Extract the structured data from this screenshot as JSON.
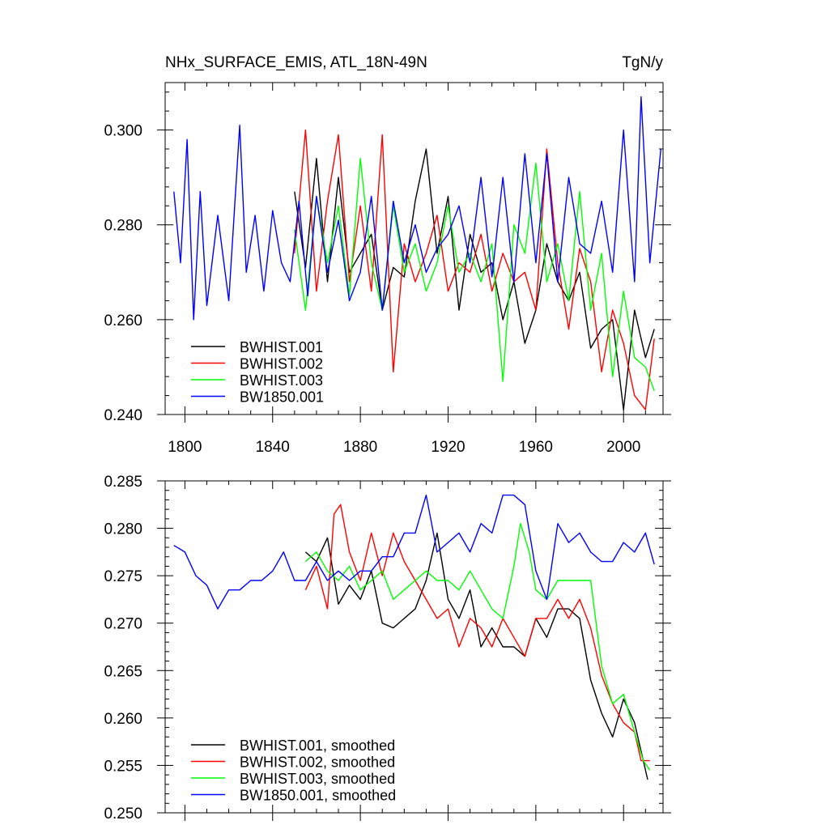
{
  "chart_data": [
    {
      "type": "line",
      "title": "NHx_SURFACE_EMIS, ATL_18N-49N",
      "units": "TgN/y",
      "xlim": [
        1791,
        2018
      ],
      "ylim": [
        0.24,
        0.31
      ],
      "x_ticks": [
        1800,
        1840,
        1880,
        1920,
        1960,
        2000
      ],
      "y_ticks": [
        0.24,
        0.26,
        0.28,
        0.3
      ],
      "y_tick_labels": [
        "0.240",
        "0.260",
        "0.280",
        "0.300"
      ],
      "legend_position": "bottom-left",
      "series": [
        {
          "name": "BWHIST.001",
          "color": "#000000",
          "x": [
            1850,
            1855,
            1860,
            1865,
            1870,
            1875,
            1880,
            1885,
            1890,
            1895,
            1900,
            1905,
            1910,
            1915,
            1920,
            1925,
            1930,
            1935,
            1940,
            1945,
            1950,
            1955,
            1960,
            1965,
            1970,
            1975,
            1980,
            1985,
            1990,
            1995,
            2000,
            2005,
            2010,
            2014
          ],
          "values": [
            0.287,
            0.271,
            0.294,
            0.268,
            0.29,
            0.27,
            0.274,
            0.278,
            0.262,
            0.271,
            0.269,
            0.285,
            0.296,
            0.274,
            0.286,
            0.262,
            0.278,
            0.27,
            0.272,
            0.26,
            0.268,
            0.255,
            0.262,
            0.276,
            0.268,
            0.264,
            0.27,
            0.254,
            0.258,
            0.26,
            0.241,
            0.262,
            0.252,
            0.258
          ]
        },
        {
          "name": "BWHIST.002",
          "color": "#ff0000",
          "x": [
            1850,
            1855,
            1860,
            1865,
            1870,
            1875,
            1880,
            1885,
            1890,
            1895,
            1900,
            1905,
            1910,
            1915,
            1920,
            1925,
            1930,
            1935,
            1940,
            1945,
            1950,
            1955,
            1960,
            1965,
            1970,
            1975,
            1980,
            1985,
            1990,
            1995,
            2000,
            2005,
            2010,
            2014
          ],
          "values": [
            0.274,
            0.3,
            0.266,
            0.285,
            0.299,
            0.268,
            0.284,
            0.266,
            0.299,
            0.249,
            0.276,
            0.268,
            0.274,
            0.282,
            0.266,
            0.272,
            0.27,
            0.278,
            0.266,
            0.274,
            0.268,
            0.27,
            0.262,
            0.296,
            0.272,
            0.258,
            0.275,
            0.268,
            0.249,
            0.262,
            0.255,
            0.244,
            0.241,
            0.256
          ]
        },
        {
          "name": "BWHIST.003",
          "color": "#00ff00",
          "x": [
            1850,
            1855,
            1860,
            1865,
            1870,
            1875,
            1880,
            1885,
            1890,
            1895,
            1900,
            1905,
            1910,
            1915,
            1920,
            1925,
            1930,
            1935,
            1940,
            1945,
            1950,
            1955,
            1960,
            1965,
            1970,
            1975,
            1980,
            1985,
            1990,
            1995,
            2000,
            2005,
            2010,
            2014
          ],
          "values": [
            0.279,
            0.262,
            0.286,
            0.272,
            0.284,
            0.265,
            0.294,
            0.272,
            0.262,
            0.284,
            0.27,
            0.276,
            0.266,
            0.272,
            0.284,
            0.27,
            0.274,
            0.268,
            0.276,
            0.247,
            0.28,
            0.274,
            0.293,
            0.268,
            0.276,
            0.264,
            0.287,
            0.262,
            0.274,
            0.248,
            0.266,
            0.252,
            0.25,
            0.245
          ]
        },
        {
          "name": "BW1850.001",
          "color": "#0000ff",
          "x": [
            1795,
            1798,
            1801,
            1804,
            1807,
            1810,
            1815,
            1820,
            1825,
            1828,
            1832,
            1836,
            1840,
            1844,
            1848,
            1852,
            1856,
            1860,
            1865,
            1870,
            1875,
            1880,
            1885,
            1890,
            1895,
            1900,
            1905,
            1910,
            1915,
            1920,
            1925,
            1930,
            1935,
            1940,
            1945,
            1950,
            1955,
            1960,
            1965,
            1970,
            1975,
            1980,
            1985,
            1990,
            1995,
            2000,
            2005,
            2008,
            2012,
            2017
          ],
          "values": [
            0.287,
            0.272,
            0.298,
            0.26,
            0.287,
            0.263,
            0.282,
            0.264,
            0.301,
            0.27,
            0.282,
            0.266,
            0.283,
            0.272,
            0.268,
            0.285,
            0.265,
            0.286,
            0.27,
            0.281,
            0.264,
            0.27,
            0.286,
            0.262,
            0.285,
            0.272,
            0.28,
            0.27,
            0.275,
            0.278,
            0.284,
            0.272,
            0.29,
            0.269,
            0.29,
            0.268,
            0.295,
            0.272,
            0.295,
            0.268,
            0.29,
            0.276,
            0.274,
            0.285,
            0.27,
            0.3,
            0.268,
            0.307,
            0.272,
            0.296
          ]
        }
      ]
    },
    {
      "type": "line",
      "xlim": [
        1791,
        2018
      ],
      "ylim": [
        0.25,
        0.285
      ],
      "x_ticks": [
        1800,
        1840,
        1880,
        1920,
        1960,
        2000
      ],
      "y_ticks": [
        0.25,
        0.255,
        0.26,
        0.265,
        0.27,
        0.275,
        0.28,
        0.285
      ],
      "y_tick_labels": [
        "0.250",
        "0.255",
        "0.260",
        "0.265",
        "0.270",
        "0.275",
        "0.280",
        "0.285"
      ],
      "legend_position": "bottom-left",
      "series": [
        {
          "name": "BWHIST.001, smoothed",
          "color": "#000000",
          "x": [
            1855,
            1860,
            1865,
            1870,
            1875,
            1880,
            1885,
            1890,
            1895,
            1900,
            1905,
            1910,
            1915,
            1920,
            1925,
            1930,
            1935,
            1940,
            1945,
            1950,
            1955,
            1960,
            1965,
            1970,
            1975,
            1980,
            1985,
            1990,
            1995,
            2000,
            2005,
            2008,
            2011
          ],
          "values": [
            0.2775,
            0.2765,
            0.279,
            0.272,
            0.274,
            0.2725,
            0.2755,
            0.27,
            0.2695,
            0.2705,
            0.2715,
            0.2745,
            0.2795,
            0.2725,
            0.2705,
            0.2735,
            0.2675,
            0.2695,
            0.2675,
            0.2675,
            0.2665,
            0.2705,
            0.2685,
            0.2715,
            0.2715,
            0.2705,
            0.264,
            0.2605,
            0.258,
            0.262,
            0.2595,
            0.2565,
            0.2535
          ]
        },
        {
          "name": "BWHIST.002, smoothed",
          "color": "#ff0000",
          "x": [
            1855,
            1860,
            1865,
            1868,
            1871,
            1875,
            1880,
            1885,
            1890,
            1895,
            1900,
            1905,
            1910,
            1915,
            1920,
            1925,
            1930,
            1935,
            1940,
            1945,
            1950,
            1955,
            1960,
            1965,
            1970,
            1975,
            1980,
            1985,
            1990,
            1995,
            2000,
            2005,
            2008,
            2012
          ],
          "values": [
            0.2735,
            0.276,
            0.2715,
            0.2815,
            0.2825,
            0.2775,
            0.2745,
            0.2795,
            0.275,
            0.2795,
            0.2765,
            0.2745,
            0.2725,
            0.2705,
            0.2715,
            0.2675,
            0.2705,
            0.2695,
            0.2675,
            0.2705,
            0.2685,
            0.2665,
            0.2705,
            0.2705,
            0.2725,
            0.2705,
            0.2725,
            0.2695,
            0.2645,
            0.2615,
            0.2595,
            0.2585,
            0.2555,
            0.2555
          ]
        },
        {
          "name": "BWHIST.003, smoothed",
          "color": "#00ff00",
          "x": [
            1855,
            1860,
            1865,
            1870,
            1875,
            1880,
            1885,
            1890,
            1895,
            1900,
            1905,
            1910,
            1915,
            1920,
            1925,
            1930,
            1935,
            1940,
            1945,
            1950,
            1953,
            1957,
            1960,
            1965,
            1970,
            1975,
            1980,
            1985,
            1990,
            1995,
            2000,
            2005,
            2009,
            2012
          ],
          "values": [
            0.2765,
            0.2775,
            0.2755,
            0.2745,
            0.276,
            0.2735,
            0.2745,
            0.2755,
            0.2725,
            0.2735,
            0.2745,
            0.2755,
            0.2745,
            0.2745,
            0.2735,
            0.2755,
            0.2735,
            0.2715,
            0.2705,
            0.276,
            0.2805,
            0.2775,
            0.2735,
            0.2725,
            0.2745,
            0.2745,
            0.2745,
            0.2745,
            0.2655,
            0.2615,
            0.2625,
            0.2585,
            0.2555,
            0.2545
          ]
        },
        {
          "name": "BW1850.001, smoothed",
          "color": "#0000ff",
          "x": [
            1795,
            1800,
            1805,
            1810,
            1815,
            1820,
            1825,
            1830,
            1835,
            1840,
            1845,
            1850,
            1855,
            1860,
            1865,
            1870,
            1875,
            1880,
            1885,
            1890,
            1895,
            1900,
            1905,
            1910,
            1915,
            1920,
            1925,
            1930,
            1935,
            1940,
            1945,
            1950,
            1955,
            1960,
            1965,
            1970,
            1975,
            1980,
            1985,
            1990,
            1995,
            2000,
            2005,
            2010,
            2014
          ],
          "values": [
            0.2782,
            0.2775,
            0.275,
            0.274,
            0.2715,
            0.2735,
            0.2735,
            0.2745,
            0.2745,
            0.2755,
            0.2775,
            0.2745,
            0.2745,
            0.2765,
            0.2745,
            0.2755,
            0.2745,
            0.2755,
            0.2755,
            0.277,
            0.277,
            0.2795,
            0.2795,
            0.2835,
            0.2775,
            0.2785,
            0.2795,
            0.2775,
            0.2805,
            0.2795,
            0.2835,
            0.2835,
            0.2825,
            0.2755,
            0.2725,
            0.2805,
            0.2785,
            0.2795,
            0.2775,
            0.2765,
            0.2765,
            0.2785,
            0.2775,
            0.2795,
            0.2762
          ]
        }
      ]
    }
  ]
}
